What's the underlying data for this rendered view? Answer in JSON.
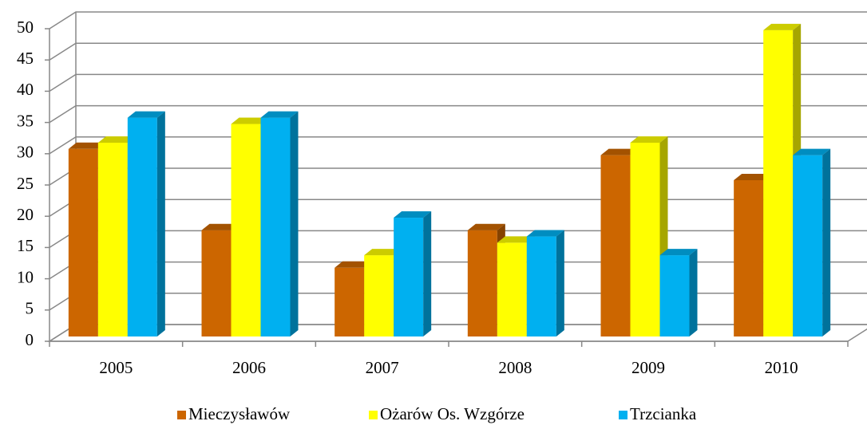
{
  "chart_data": {
    "type": "bar3d",
    "categories": [
      "2005",
      "2006",
      "2007",
      "2008",
      "2009",
      "2010"
    ],
    "series": [
      {
        "name": "Mieczysławów",
        "color": "#cc6600",
        "values": [
          30,
          17,
          11,
          17,
          29,
          25
        ]
      },
      {
        "name": "Ożarów Os. Wzgórze",
        "color": "#ffff00",
        "values": [
          31,
          34,
          13,
          15,
          31,
          49
        ]
      },
      {
        "name": "Trzcianka",
        "color": "#00b0f0",
        "values": [
          35,
          35,
          19,
          16,
          13,
          29
        ]
      }
    ],
    "ylim": [
      0,
      50
    ],
    "yticks": [
      0,
      5,
      10,
      15,
      20,
      25,
      30,
      35,
      40,
      45,
      50
    ],
    "grid": true,
    "legend": "bottom"
  }
}
